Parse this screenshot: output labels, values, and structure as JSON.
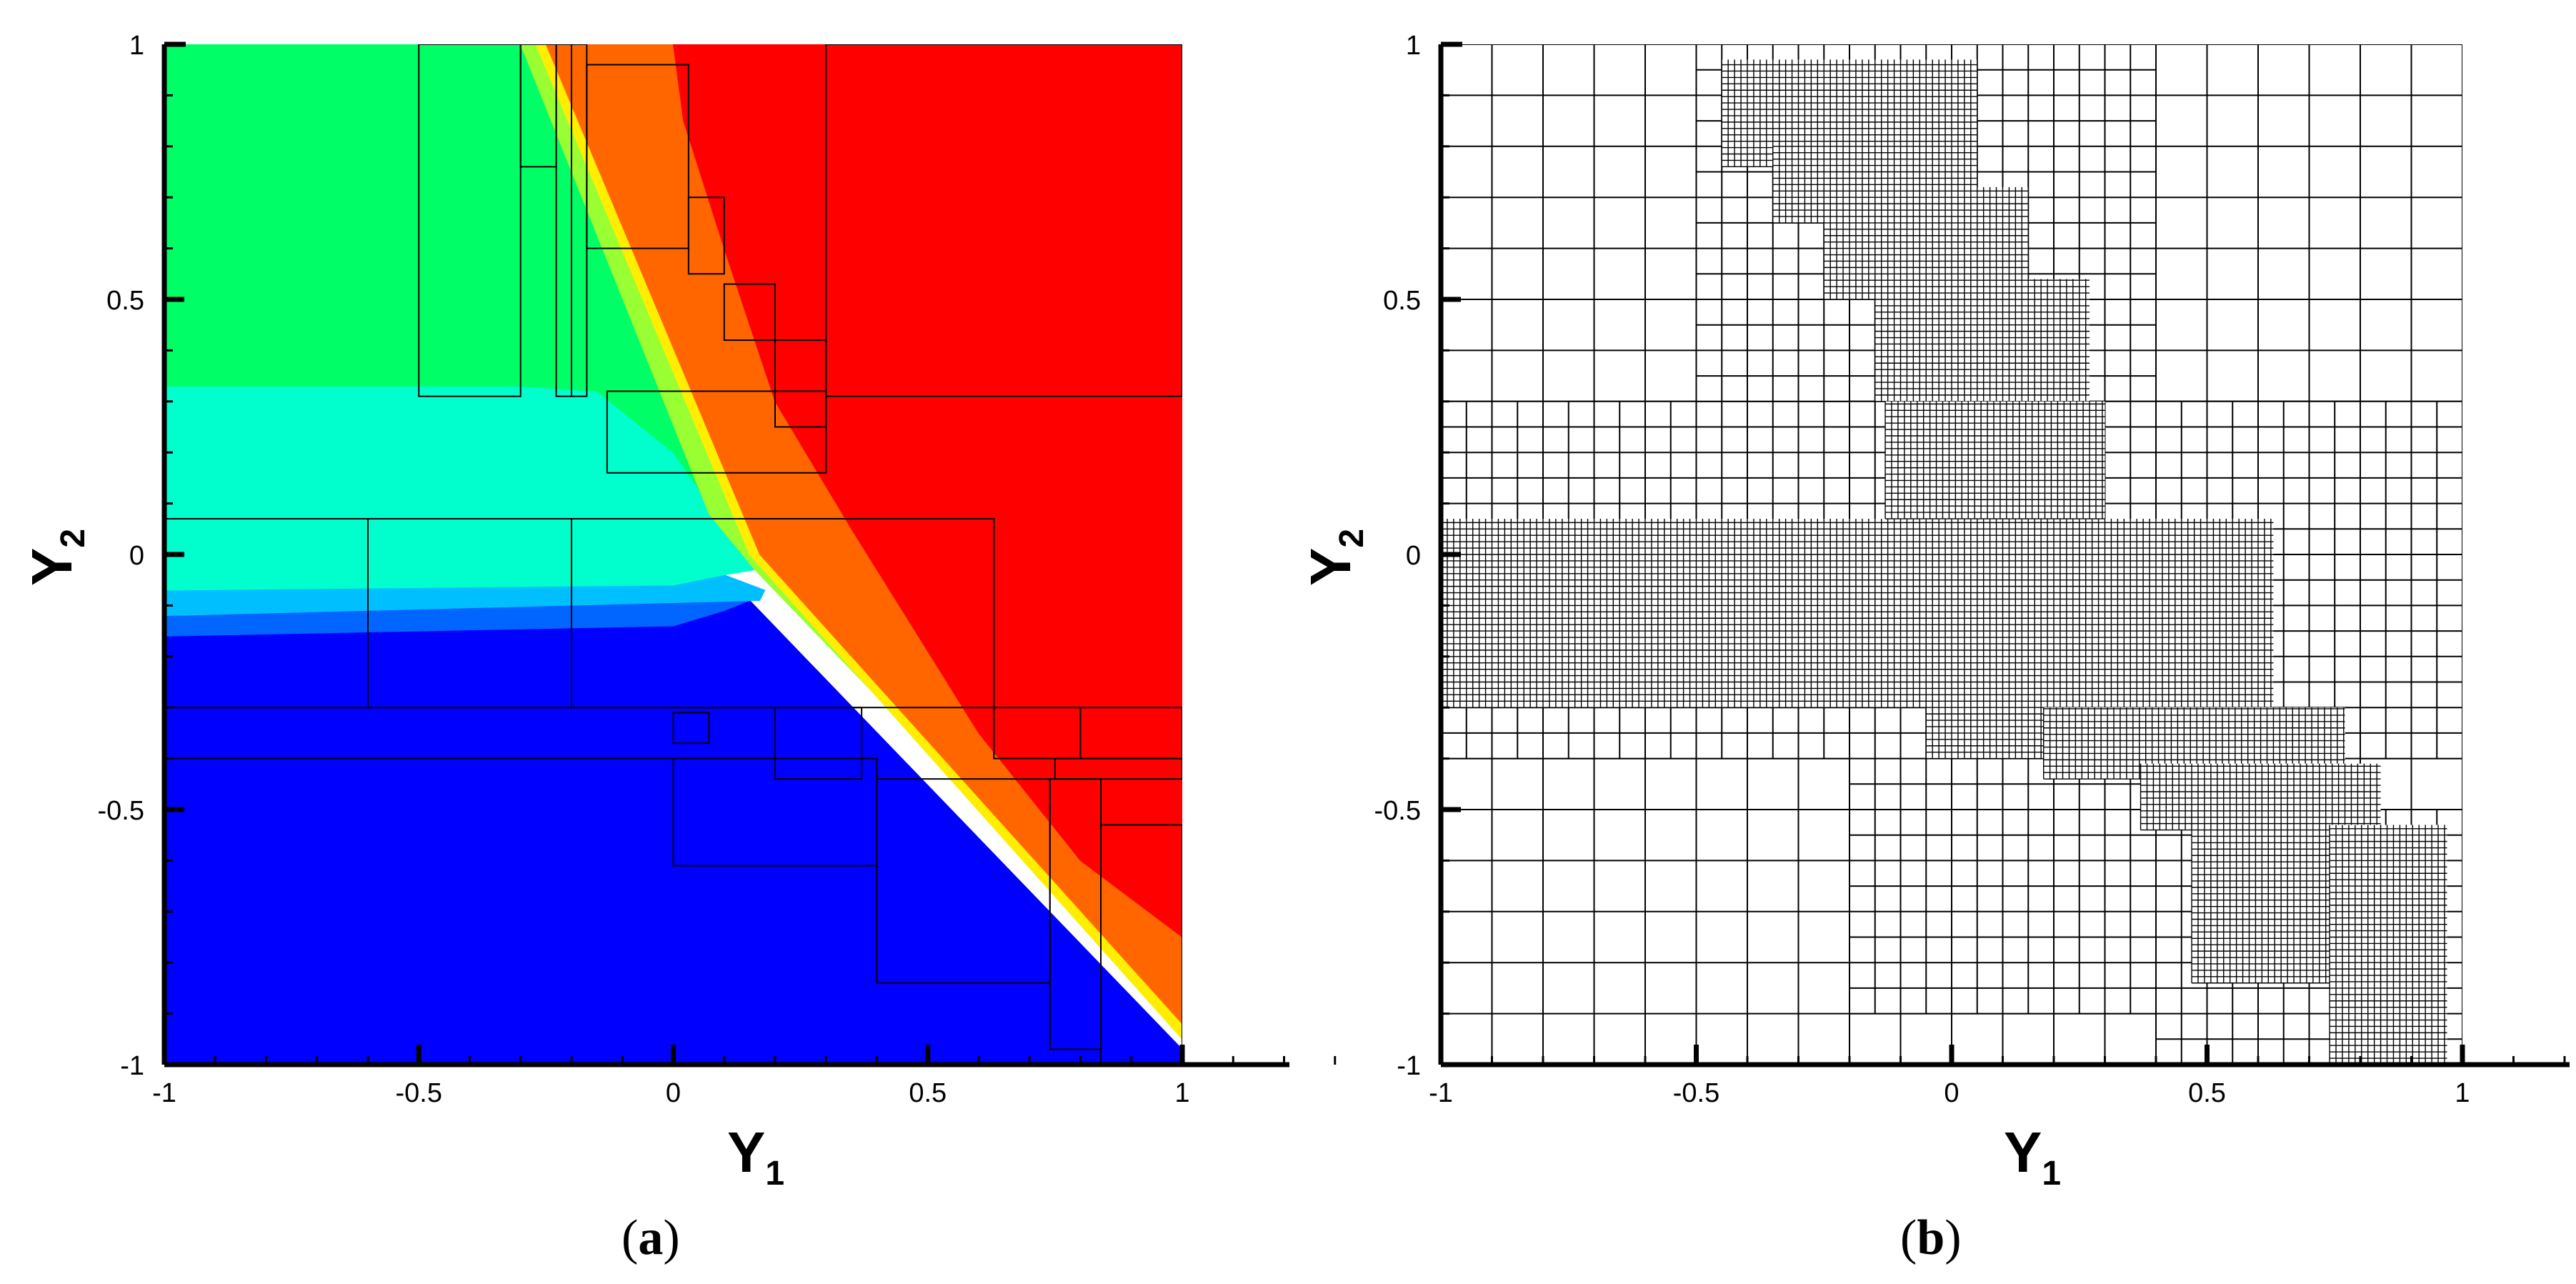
{
  "chart_data": [
    {
      "type": "heatmap",
      "caption_open": "(",
      "caption_letter": "a",
      "caption_close": ")",
      "xlabel_main": "Y",
      "xlabel_sub": "1",
      "ylabel_main": "Y",
      "ylabel_sub": "2",
      "xlim": [
        -1,
        1
      ],
      "ylim": [
        -1,
        1
      ],
      "x_ticks": [
        "-1",
        "-0.5",
        "0",
        "0.5",
        "1"
      ],
      "y_ticks": [
        "-1",
        "-0.5",
        "0",
        "0.5",
        "1"
      ],
      "grid": false,
      "colors": {
        "red": "#ff0000",
        "orange": "#ff6600",
        "yellow": "#ffee00",
        "light_green": "#99ff33",
        "green": "#00ff66",
        "cyan": "#00ffcc",
        "light_blue": "#00bfff",
        "medium_blue": "#0066ff",
        "blue": "#0000ff"
      },
      "regions": [
        {
          "color": "blue",
          "polygon": [
            [
              -1,
              -1
            ],
            [
              1,
              -1
            ],
            [
              1,
              -0.97
            ],
            [
              0.15,
              -0.09
            ],
            [
              0.1,
              -0.11
            ],
            [
              0.0,
              -0.14
            ],
            [
              -1,
              -0.16
            ]
          ]
        },
        {
          "color": "medium_blue",
          "polygon": [
            [
              -1,
              -0.16
            ],
            [
              0.0,
              -0.14
            ],
            [
              0.1,
              -0.11
            ],
            [
              0.15,
              -0.09
            ],
            [
              0.17,
              -0.09
            ],
            [
              -1,
              -0.12
            ]
          ]
        },
        {
          "color": "light_blue",
          "polygon": [
            [
              -1,
              -0.12
            ],
            [
              0.17,
              -0.09
            ],
            [
              0.18,
              -0.07
            ],
            [
              0.1,
              -0.04
            ],
            [
              0.0,
              -0.06
            ],
            [
              -1,
              -0.07
            ]
          ]
        },
        {
          "color": "cyan",
          "polygon": [
            [
              -1,
              -0.07
            ],
            [
              0.0,
              -0.06
            ],
            [
              0.1,
              -0.04
            ],
            [
              0.16,
              -0.03
            ],
            [
              0.0,
              0.2
            ],
            [
              -0.15,
              0.32
            ],
            [
              -0.3,
              0.33
            ],
            [
              -1,
              0.33
            ]
          ]
        },
        {
          "color": "green",
          "polygon": [
            [
              -1,
              0.33
            ],
            [
              -0.3,
              0.33
            ],
            [
              -0.15,
              0.32
            ],
            [
              0.0,
              0.2
            ],
            [
              0.16,
              -0.03
            ],
            [
              0.07,
              0.08
            ],
            [
              -0.3,
              1
            ],
            [
              -1,
              1
            ]
          ]
        },
        {
          "color": "light_green",
          "polygon": [
            [
              -0.3,
              1
            ],
            [
              0.07,
              0.08
            ],
            [
              0.16,
              -0.03
            ],
            [
              1,
              -0.9
            ],
            [
              1,
              -0.95
            ],
            [
              0.15,
              0.0
            ],
            [
              -0.27,
              1
            ]
          ]
        },
        {
          "color": "yellow",
          "polygon": [
            [
              -0.27,
              1
            ],
            [
              0.15,
              0.0
            ],
            [
              1,
              -0.95
            ],
            [
              1,
              -0.92
            ],
            [
              0.17,
              0.0
            ],
            [
              -0.25,
              1
            ]
          ]
        },
        {
          "color": "orange",
          "polygon": [
            [
              -0.25,
              1
            ],
            [
              0.17,
              0.0
            ],
            [
              1,
              -0.92
            ],
            [
              1,
              -0.75
            ],
            [
              0.8,
              -0.6
            ],
            [
              0.6,
              -0.35
            ],
            [
              0.35,
              0.05
            ],
            [
              0.2,
              0.3
            ],
            [
              0.1,
              0.6
            ],
            [
              0.02,
              0.85
            ],
            [
              0.0,
              1
            ]
          ]
        },
        {
          "color": "red",
          "polygon": [
            [
              0.0,
              1
            ],
            [
              0.02,
              0.85
            ],
            [
              0.1,
              0.6
            ],
            [
              0.2,
              0.3
            ],
            [
              0.35,
              0.05
            ],
            [
              0.6,
              -0.35
            ],
            [
              0.8,
              -0.6
            ],
            [
              1,
              -0.75
            ],
            [
              1,
              1
            ]
          ]
        }
      ],
      "boxes": [
        [
          -0.5,
          0.31,
          -0.3,
          1
        ],
        [
          -0.3,
          0.76,
          -0.23,
          1
        ],
        [
          -0.23,
          0.31,
          -0.2,
          1
        ],
        [
          -0.2,
          0.31,
          -0.17,
          1
        ],
        [
          -0.17,
          0.6,
          0.03,
          0.96
        ],
        [
          0.03,
          0.55,
          0.1,
          0.7
        ],
        [
          0.1,
          0.42,
          0.2,
          0.53
        ],
        [
          0.2,
          0.25,
          0.3,
          0.42
        ],
        [
          0.3,
          0.31,
          1,
          1
        ],
        [
          -0.13,
          0.16,
          0.3,
          0.32
        ],
        [
          -1,
          -0.3,
          -0.6,
          0.07
        ],
        [
          -0.6,
          -0.3,
          -0.2,
          0.07
        ],
        [
          -0.2,
          -0.3,
          0.63,
          0.07
        ],
        [
          0.63,
          -0.4,
          0.8,
          -0.3
        ],
        [
          0.8,
          -0.4,
          1,
          -0.3
        ],
        [
          -1,
          -0.4,
          0.2,
          -0.3
        ],
        [
          0.2,
          -0.44,
          0.37,
          -0.3
        ],
        [
          0.0,
          -0.37,
          0.07,
          -0.31
        ],
        [
          0.0,
          -0.61,
          0.4,
          -0.4
        ],
        [
          0.4,
          -0.84,
          0.74,
          -0.44
        ],
        [
          0.74,
          -0.97,
          0.84,
          -0.44
        ],
        [
          0.84,
          -1,
          1,
          -0.53
        ],
        [
          0.75,
          -0.44,
          1,
          -0.4
        ]
      ]
    },
    {
      "type": "heatmap",
      "caption_open": "(",
      "caption_letter": "b",
      "caption_close": ")",
      "xlabel_main": "Y",
      "xlabel_sub": "1",
      "ylabel_main": "Y",
      "ylabel_sub": "2",
      "xlim": [
        -1,
        1
      ],
      "ylim": [
        -1,
        1
      ],
      "x_ticks": [
        "-1",
        "-0.5",
        "0",
        "0.5",
        "1"
      ],
      "y_ticks": [
        "-1",
        "-0.5",
        "0",
        "0.5",
        "1"
      ],
      "grid": true,
      "mesh_blocks": [
        {
          "rect": [
            -1,
            -1,
            1,
            1
          ],
          "cell": 0.1
        },
        {
          "rect": [
            -1,
            -0.4,
            1,
            0.3
          ],
          "cell": 0.05
        },
        {
          "rect": [
            -0.5,
            0.3,
            0.4,
            1
          ],
          "cell": 0.05
        },
        {
          "rect": [
            -0.2,
            -0.9,
            0.8,
            0.3
          ],
          "cell": 0.05
        },
        {
          "rect": [
            0.4,
            -1,
            1,
            -0.5
          ],
          "cell": 0.05
        },
        {
          "rect": [
            -1,
            -0.3,
            0.63,
            0.07
          ],
          "cell": 0.0125
        },
        {
          "rect": [
            -0.45,
            0.76,
            0.05,
            0.97
          ],
          "cell": 0.0125
        },
        {
          "rect": [
            -0.35,
            0.65,
            0.05,
            0.8
          ],
          "cell": 0.0125
        },
        {
          "rect": [
            -0.25,
            0.5,
            0.15,
            0.72
          ],
          "cell": 0.0125
        },
        {
          "rect": [
            -0.15,
            0.3,
            0.27,
            0.54
          ],
          "cell": 0.0125
        },
        {
          "rect": [
            -0.13,
            0.07,
            0.3,
            0.3
          ],
          "cell": 0.0125
        },
        {
          "rect": [
            -0.05,
            -0.4,
            0.37,
            -0.28
          ],
          "cell": 0.0125
        },
        {
          "rect": [
            0.18,
            -0.44,
            0.77,
            -0.3
          ],
          "cell": 0.0125
        },
        {
          "rect": [
            0.37,
            -0.54,
            0.84,
            -0.41
          ],
          "cell": 0.0125
        },
        {
          "rect": [
            0.47,
            -0.84,
            0.74,
            -0.5
          ],
          "cell": 0.0125
        },
        {
          "rect": [
            0.74,
            -1,
            0.84,
            -0.53
          ],
          "cell": 0.0125
        },
        {
          "rect": [
            0.84,
            -1,
            0.97,
            -0.53
          ],
          "cell": 0.0125
        }
      ]
    }
  ]
}
